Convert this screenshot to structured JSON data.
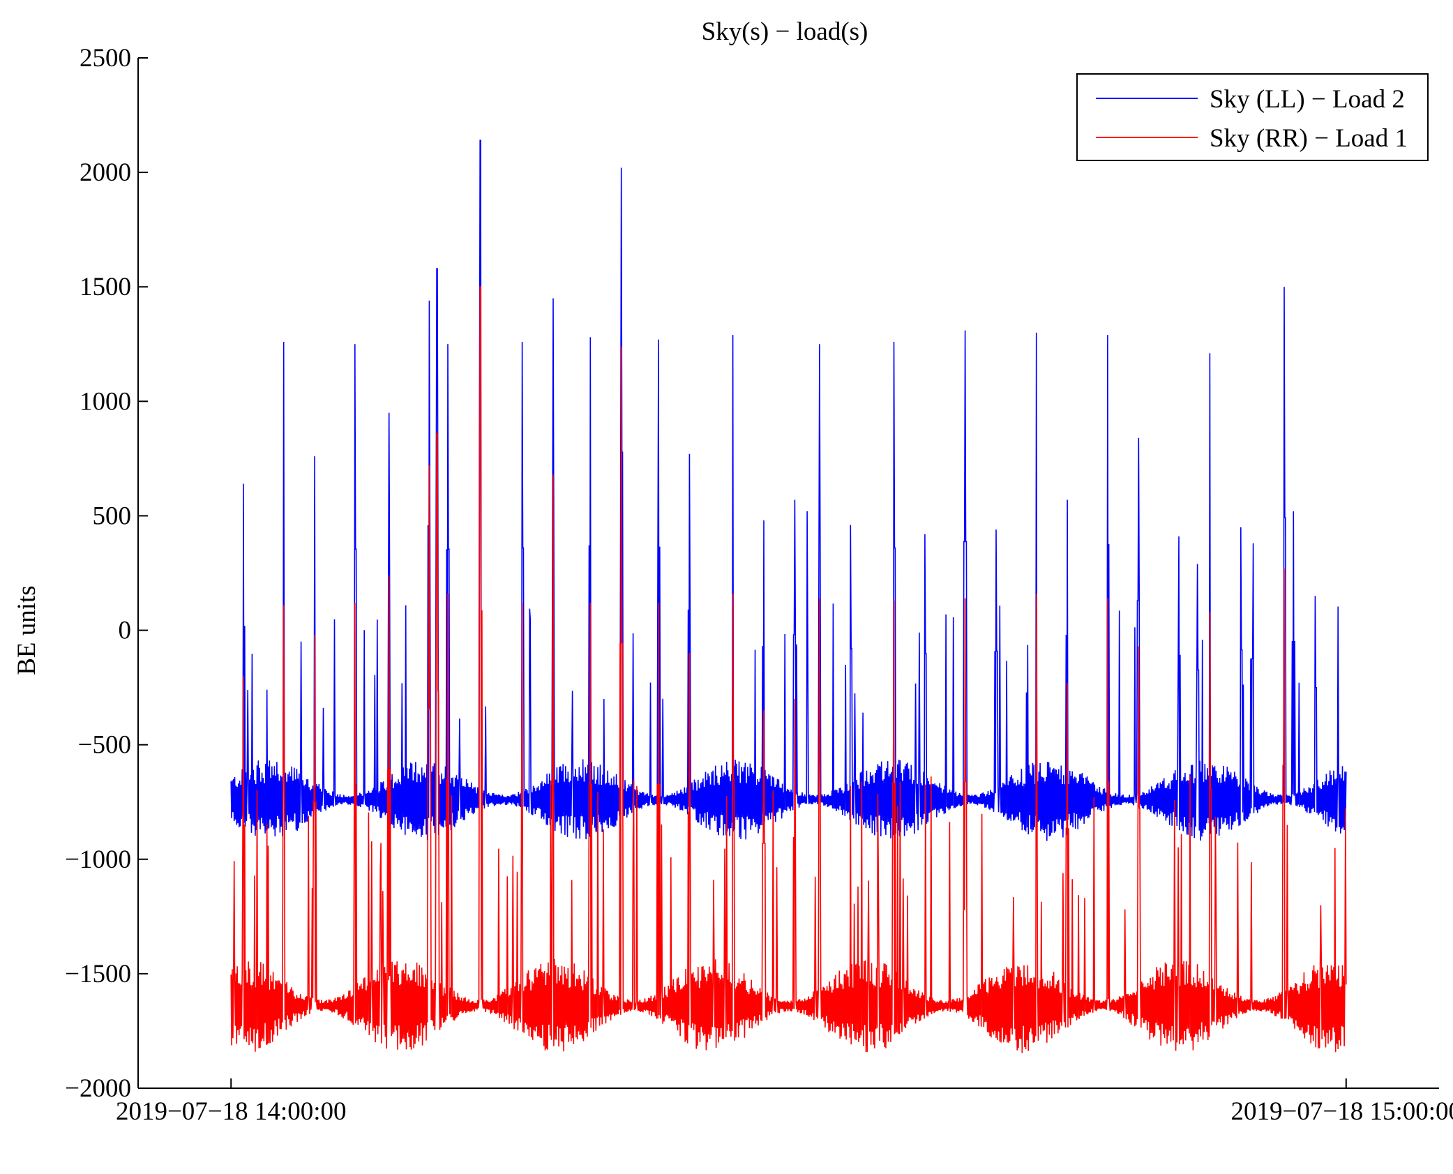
{
  "chart_data": {
    "type": "line",
    "title": "Sky(s) − load(s)",
    "xlabel": "",
    "ylabel": "BE units",
    "ylim": [
      -2000,
      2500
    ],
    "yticks": [
      -2000,
      -1500,
      -1000,
      -500,
      0,
      500,
      1000,
      1500,
      2000,
      2500
    ],
    "ytick_labels": [
      "−2000",
      "−1500",
      "−1000",
      "−500",
      "0",
      "500",
      "1000",
      "1500",
      "2000",
      "2500"
    ],
    "xlim": [
      "2019-07-18 13:55:00",
      "2019-07-18 15:05:00"
    ],
    "xticks": [
      "2019-07-18 14:00:00",
      "2019-07-18 15:00:00"
    ],
    "xtick_labels": [
      "2019−07−18 14:00:00",
      "2019−07−18 15:00:00"
    ],
    "grid": false,
    "legend_position": "top-right",
    "data_start": "2019-07-18 14:00:00",
    "data_end": "2019-07-18 15:00:00",
    "series": [
      {
        "name": "Sky (LL) − Load 2",
        "color": "#0000ff",
        "baseline": -740,
        "oscillation_range": [
          -950,
          -450
        ],
        "spikes": [
          {
            "x": "2019-07-18 14:00:40",
            "y": 640
          },
          {
            "x": "2019-07-18 14:02:50",
            "y": 1260
          },
          {
            "x": "2019-07-18 14:04:30",
            "y": 760
          },
          {
            "x": "2019-07-18 14:06:40",
            "y": 1250
          },
          {
            "x": "2019-07-18 14:08:30",
            "y": 950
          },
          {
            "x": "2019-07-18 14:10:40",
            "y": 1440
          },
          {
            "x": "2019-07-18 14:11:05",
            "y": 1580
          },
          {
            "x": "2019-07-18 14:11:40",
            "y": 1250
          },
          {
            "x": "2019-07-18 14:13:25",
            "y": 2140
          },
          {
            "x": "2019-07-18 14:15:40",
            "y": 1260
          },
          {
            "x": "2019-07-18 14:17:20",
            "y": 1450
          },
          {
            "x": "2019-07-18 14:19:20",
            "y": 1280
          },
          {
            "x": "2019-07-18 14:21:00",
            "y": 2020
          },
          {
            "x": "2019-07-18 14:23:00",
            "y": 1270
          },
          {
            "x": "2019-07-18 14:24:40",
            "y": 770
          },
          {
            "x": "2019-07-18 14:27:00",
            "y": 1290
          },
          {
            "x": "2019-07-18 14:28:40",
            "y": 480
          },
          {
            "x": "2019-07-18 14:30:20",
            "y": 570
          },
          {
            "x": "2019-07-18 14:31:00",
            "y": 520
          },
          {
            "x": "2019-07-18 14:31:40",
            "y": 1250
          },
          {
            "x": "2019-07-18 14:33:20",
            "y": 460
          },
          {
            "x": "2019-07-18 14:35:40",
            "y": 1260
          },
          {
            "x": "2019-07-18 14:37:20",
            "y": 420
          },
          {
            "x": "2019-07-18 14:39:30",
            "y": 1310
          },
          {
            "x": "2019-07-18 14:41:10",
            "y": 440
          },
          {
            "x": "2019-07-18 14:43:20",
            "y": 1300
          },
          {
            "x": "2019-07-18 14:45:00",
            "y": 570
          },
          {
            "x": "2019-07-18 14:47:10",
            "y": 1290
          },
          {
            "x": "2019-07-18 14:48:50",
            "y": 840
          },
          {
            "x": "2019-07-18 14:51:00",
            "y": 410
          },
          {
            "x": "2019-07-18 14:52:00",
            "y": 290
          },
          {
            "x": "2019-07-18 14:52:40",
            "y": 1210
          },
          {
            "x": "2019-07-18 14:54:20",
            "y": 450
          },
          {
            "x": "2019-07-18 14:55:00",
            "y": 380
          },
          {
            "x": "2019-07-18 14:56:40",
            "y": 1500
          },
          {
            "x": "2019-07-18 14:57:10",
            "y": 520
          },
          {
            "x": "2019-07-18 14:58:20",
            "y": 150
          }
        ]
      },
      {
        "name": "Sky (RR) − Load 1",
        "color": "#ff0000",
        "baseline": -1640,
        "oscillation_range": [
          -1880,
          -1300
        ],
        "spikes": [
          {
            "x": "2019-07-18 14:00:40",
            "y": -200
          },
          {
            "x": "2019-07-18 14:02:50",
            "y": 110
          },
          {
            "x": "2019-07-18 14:04:30",
            "y": -20
          },
          {
            "x": "2019-07-18 14:06:40",
            "y": 120
          },
          {
            "x": "2019-07-18 14:08:30",
            "y": 240
          },
          {
            "x": "2019-07-18 14:10:40",
            "y": 720
          },
          {
            "x": "2019-07-18 14:11:05",
            "y": 860
          },
          {
            "x": "2019-07-18 14:11:40",
            "y": 160
          },
          {
            "x": "2019-07-18 14:13:25",
            "y": 1500
          },
          {
            "x": "2019-07-18 14:15:40",
            "y": 120
          },
          {
            "x": "2019-07-18 14:17:20",
            "y": 680
          },
          {
            "x": "2019-07-18 14:19:20",
            "y": 120
          },
          {
            "x": "2019-07-18 14:21:00",
            "y": 1240
          },
          {
            "x": "2019-07-18 14:23:00",
            "y": 120
          },
          {
            "x": "2019-07-18 14:24:40",
            "y": -100
          },
          {
            "x": "2019-07-18 14:27:00",
            "y": 160
          },
          {
            "x": "2019-07-18 14:28:40",
            "y": -350
          },
          {
            "x": "2019-07-18 14:30:20",
            "y": -300
          },
          {
            "x": "2019-07-18 14:31:40",
            "y": 140
          },
          {
            "x": "2019-07-18 14:35:40",
            "y": 130
          },
          {
            "x": "2019-07-18 14:39:30",
            "y": 140
          },
          {
            "x": "2019-07-18 14:43:20",
            "y": 160
          },
          {
            "x": "2019-07-18 14:45:00",
            "y": -230
          },
          {
            "x": "2019-07-18 14:47:10",
            "y": 140
          },
          {
            "x": "2019-07-18 14:48:50",
            "y": -70
          },
          {
            "x": "2019-07-18 14:52:40",
            "y": 80
          },
          {
            "x": "2019-07-18 14:56:40",
            "y": 270
          }
        ]
      }
    ]
  }
}
